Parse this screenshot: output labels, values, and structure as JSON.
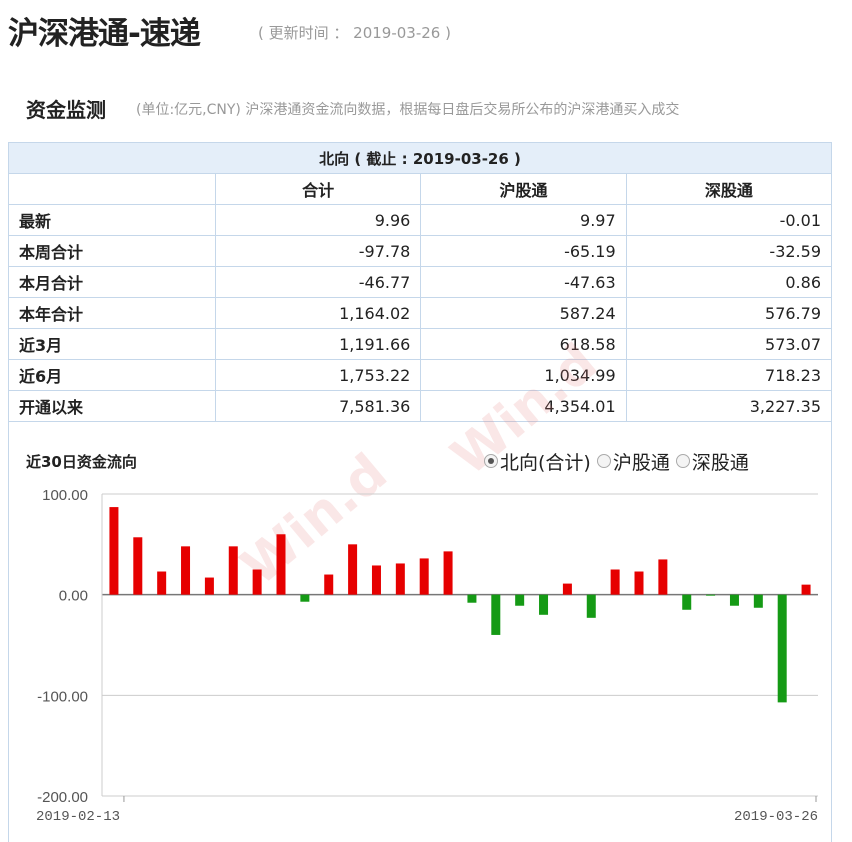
{
  "header": {
    "title": "沪深港通-速递",
    "update": "( 更新时间 ： 2019-03-26 )"
  },
  "section": {
    "title": "资金监测",
    "note": "(单位:亿元,CNY)  沪深港通资金流向数据，根据每日盘后交易所公布的沪深港通买入成交"
  },
  "table": {
    "caption": "北向 ( 截止 : 2019-03-26 )",
    "columns": [
      "",
      "合计",
      "沪股通",
      "深股通"
    ],
    "rows": [
      [
        "最新",
        "9.96",
        "9.97",
        "-0.01"
      ],
      [
        "本周合计",
        "-97.78",
        "-65.19",
        "-32.59"
      ],
      [
        "本月合计",
        "-46.77",
        "-47.63",
        "0.86"
      ],
      [
        "本年合计",
        "1,164.02",
        "587.24",
        "576.79"
      ],
      [
        "近3月",
        "1,191.66",
        "618.58",
        "573.07"
      ],
      [
        "近6月",
        "1,753.22",
        "1,034.99",
        "718.23"
      ],
      [
        "开通以来",
        "7,581.36",
        "4,354.01",
        "3,227.35"
      ]
    ]
  },
  "watermark": "Win.d",
  "chart": {
    "title": "近30日资金流向",
    "legend": [
      {
        "label": "北向(合计)",
        "selected": true
      },
      {
        "label": "沪股通",
        "selected": false
      },
      {
        "label": "深股通",
        "selected": false
      }
    ]
  },
  "chart_data": {
    "type": "bar",
    "title": "近30日资金流向",
    "ylim": [
      -200,
      100
    ],
    "yticks": [
      "100.00",
      "0.00",
      "-100.00",
      "-200.00"
    ],
    "xticks": [
      "2019-02-13",
      "2019-03-26"
    ],
    "grid": true,
    "colors": {
      "positive": "#e60000",
      "negative": "#159a15"
    },
    "values": [
      87,
      57,
      23,
      48,
      17,
      48,
      25,
      60,
      -7,
      20,
      50,
      29,
      31,
      36,
      43,
      -8,
      -40,
      -11,
      -20,
      11,
      -23,
      25,
      23,
      35,
      -15,
      -1,
      -11,
      -13,
      -107,
      9.96
    ]
  }
}
